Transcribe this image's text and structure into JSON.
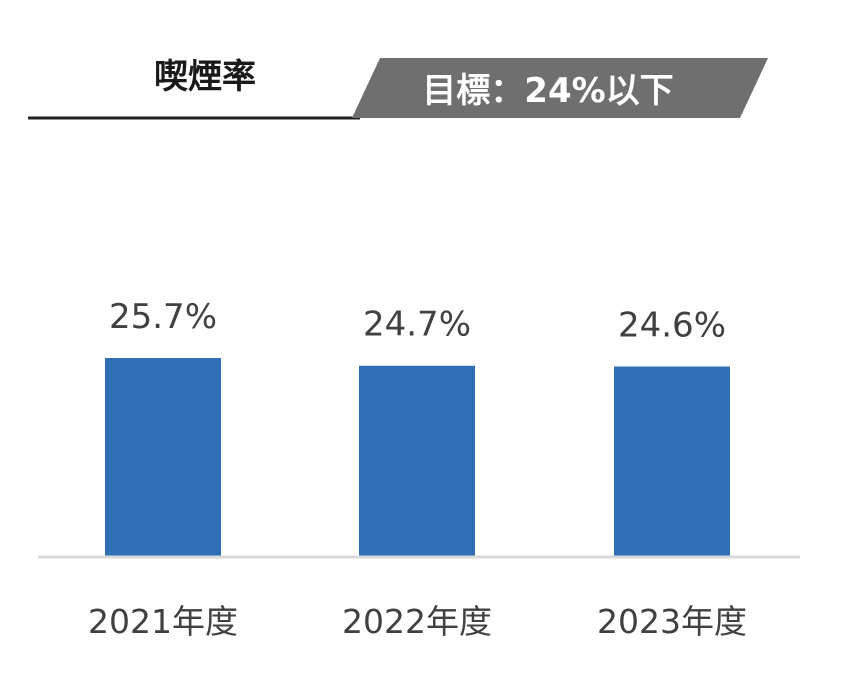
{
  "chart_data": {
    "type": "bar",
    "title": "喫煙率",
    "target_label": "目標：24%以下",
    "categories": [
      "2021年度",
      "2022年度",
      "2023年度"
    ],
    "values": [
      25.7,
      24.7,
      24.6
    ],
    "value_labels": [
      "25.7%",
      "24.7%",
      "24.6%"
    ],
    "unit": "%",
    "ylim": [
      0,
      32
    ],
    "xlabel": "",
    "ylabel": "",
    "grid": false,
    "legend": "none",
    "bar_color": "#2e6fb5",
    "target_badge_color": "#6f6f6f",
    "text_color": "#404040"
  }
}
